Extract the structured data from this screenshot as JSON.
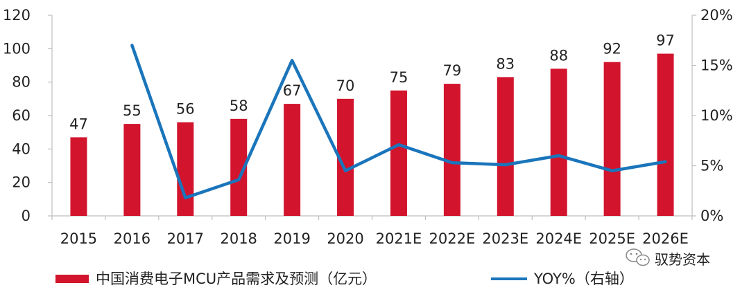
{
  "chart_data": {
    "type": "bar",
    "categories": [
      "2015",
      "2016",
      "2017",
      "2018",
      "2019",
      "2020",
      "2021E",
      "2022E",
      "2023E",
      "2024E",
      "2025E",
      "2026E"
    ],
    "series": [
      {
        "name": "中国消费电子MCU产品需求及预测（亿元）",
        "type": "bar",
        "axis": "left",
        "values": [
          47,
          55,
          56,
          58,
          67,
          70,
          75,
          79,
          83,
          88,
          92,
          97
        ],
        "data_labels": [
          "47",
          "55",
          "56",
          "58",
          "67",
          "70",
          "75",
          "79",
          "83",
          "88",
          "92",
          "97"
        ]
      },
      {
        "name": "YOY%（右轴）",
        "type": "line",
        "axis": "right",
        "values": [
          null,
          17.0,
          1.8,
          3.6,
          15.5,
          4.5,
          7.1,
          5.3,
          5.1,
          6.0,
          4.5,
          5.4
        ]
      }
    ],
    "y_left": {
      "ylim": [
        0,
        120
      ],
      "ticks": [
        "0",
        "20",
        "40",
        "60",
        "80",
        "100",
        "120"
      ]
    },
    "y_right": {
      "ylim": [
        0,
        20
      ],
      "ticks": [
        "0%",
        "5%",
        "10%",
        "15%",
        "20%"
      ]
    },
    "legend_position": "bottom",
    "grid": false,
    "colors": {
      "bar": "#d2142d",
      "line": "#1a75bb",
      "axis": "#bfbfbf"
    }
  },
  "watermark": {
    "text": "驭势资本"
  }
}
